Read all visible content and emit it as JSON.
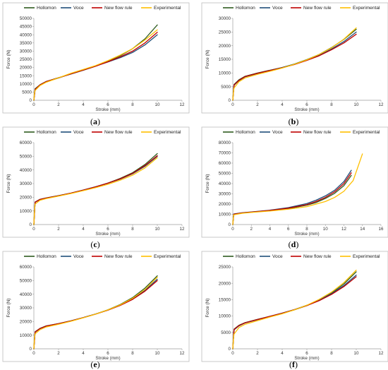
{
  "chart_data": [
    {
      "caption_letter": "a",
      "type": "line",
      "legend": [
        "Hollomon",
        "Voce",
        "New flow rule",
        "Experimental"
      ],
      "xlabel": "Stroke (mm)",
      "ylabel": "Force (N)",
      "xlim": [
        0,
        12
      ],
      "ylim": [
        0,
        50000
      ],
      "xticks": [
        0,
        2,
        4,
        6,
        8,
        10,
        12
      ],
      "yticks": [
        0,
        5000,
        10000,
        15000,
        20000,
        25000,
        30000,
        35000,
        40000,
        45000,
        50000
      ],
      "series": [
        {
          "name": "Hollomon",
          "x": [
            0,
            0.1,
            0.5,
            1,
            2,
            3,
            4,
            5,
            6,
            7,
            8,
            9,
            10
          ],
          "y": [
            0,
            7000,
            9500,
            11500,
            13800,
            16000,
            18300,
            20800,
            23800,
            27200,
            31500,
            37500,
            46000
          ]
        },
        {
          "name": "Voce",
          "x": [
            0,
            0.1,
            0.5,
            1,
            2,
            3,
            4,
            5,
            6,
            7,
            8,
            9,
            10
          ],
          "y": [
            0,
            6500,
            9300,
            11300,
            13600,
            16200,
            18500,
            20900,
            23400,
            26000,
            29200,
            33800,
            40000
          ]
        },
        {
          "name": "New flow rule",
          "x": [
            0,
            0.1,
            0.5,
            1,
            2,
            3,
            4,
            5,
            6,
            7,
            8,
            9,
            10
          ],
          "y": [
            0,
            6600,
            9400,
            11400,
            13700,
            16100,
            18400,
            20800,
            23500,
            26500,
            30000,
            35000,
            41500
          ]
        },
        {
          "name": "Experimental",
          "x": [
            0,
            0.05,
            0.1,
            0.5,
            1,
            2,
            3,
            4,
            5,
            6,
            7,
            8,
            9,
            10
          ],
          "y": [
            0,
            4500,
            6000,
            9000,
            11000,
            13700,
            16500,
            18800,
            21200,
            24200,
            27600,
            31500,
            36800,
            43000
          ]
        }
      ]
    },
    {
      "caption_letter": "b",
      "type": "line",
      "legend": [
        "Hollomon",
        "Voce",
        "New flow rule",
        "Experimental"
      ],
      "xlabel": "Stroke (mm)",
      "ylabel": "Force (N)",
      "xlim": [
        0,
        12
      ],
      "ylim": [
        0,
        30000
      ],
      "xticks": [
        0,
        2,
        4,
        6,
        8,
        10,
        12
      ],
      "yticks": [
        0,
        5000,
        10000,
        15000,
        20000,
        25000,
        30000
      ],
      "series": [
        {
          "name": "Hollomon",
          "x": [
            0,
            0.1,
            0.5,
            1,
            2,
            3,
            4,
            5,
            6,
            7,
            8,
            9,
            10
          ],
          "y": [
            0,
            5800,
            7500,
            8800,
            10000,
            11000,
            12000,
            13300,
            14900,
            16800,
            19300,
            22300,
            26000
          ]
        },
        {
          "name": "Voce",
          "x": [
            0,
            0.1,
            0.5,
            1,
            2,
            3,
            4,
            5,
            6,
            7,
            8,
            9,
            10
          ],
          "y": [
            0,
            5500,
            7200,
            8600,
            9800,
            10900,
            12000,
            13200,
            14700,
            16500,
            18800,
            21500,
            25000
          ]
        },
        {
          "name": "New flow rule",
          "x": [
            0,
            0.1,
            0.5,
            1,
            2,
            3,
            4,
            5,
            6,
            7,
            8,
            9,
            10
          ],
          "y": [
            0,
            5600,
            7300,
            8700,
            9900,
            10900,
            11900,
            13100,
            14600,
            16300,
            18500,
            21000,
            24200
          ]
        },
        {
          "name": "Experimental",
          "x": [
            0,
            0.05,
            0.1,
            0.5,
            1,
            2,
            3,
            4,
            5,
            6,
            7,
            8,
            9,
            10
          ],
          "y": [
            0,
            3000,
            4500,
            6800,
            8200,
            9500,
            10600,
            11800,
            13200,
            14800,
            16800,
            19200,
            22400,
            26500
          ]
        }
      ]
    },
    {
      "caption_letter": "c",
      "type": "line",
      "legend": [
        "Hollomon",
        "Voce",
        "New flow rule",
        "Experimental"
      ],
      "xlabel": "Stroke (mm)",
      "ylabel": "Force (N)",
      "xlim": [
        0,
        12
      ],
      "ylim": [
        0,
        60000
      ],
      "xticks": [
        0,
        2,
        4,
        6,
        8,
        10,
        12
      ],
      "yticks": [
        0,
        10000,
        20000,
        30000,
        40000,
        50000,
        60000
      ],
      "series": [
        {
          "name": "Hollomon",
          "x": [
            0,
            0.1,
            0.5,
            1,
            2,
            3,
            4,
            5,
            6,
            7,
            8,
            9,
            10
          ],
          "y": [
            0,
            16500,
            18500,
            19500,
            21200,
            23000,
            25200,
            27600,
            30400,
            33800,
            38000,
            44000,
            52000
          ]
        },
        {
          "name": "Voce",
          "x": [
            0,
            0.1,
            0.5,
            1,
            2,
            3,
            4,
            5,
            6,
            7,
            8,
            9,
            10
          ],
          "y": [
            0,
            16300,
            18300,
            19300,
            21000,
            23000,
            25300,
            27700,
            30300,
            33300,
            37200,
            42700,
            50000
          ]
        },
        {
          "name": "New flow rule",
          "x": [
            0,
            0.1,
            0.5,
            1,
            2,
            3,
            4,
            5,
            6,
            7,
            8,
            9,
            10
          ],
          "y": [
            0,
            16400,
            18400,
            19400,
            21100,
            23000,
            25200,
            27600,
            30300,
            33500,
            37500,
            43200,
            50500
          ]
        },
        {
          "name": "Experimental",
          "x": [
            0,
            0.05,
            0.1,
            0.5,
            1,
            2,
            3,
            4,
            5,
            6,
            7,
            8,
            9,
            10
          ],
          "y": [
            0,
            10000,
            15000,
            17800,
            19000,
            20800,
            22700,
            24800,
            27000,
            29500,
            32500,
            36200,
            41500,
            49000
          ]
        }
      ]
    },
    {
      "caption_letter": "d",
      "type": "line",
      "legend": [
        "Hollomon",
        "Voce",
        "New flow rule",
        "Experimental"
      ],
      "xlabel": "Stroke (mm)",
      "ylabel": "Force (N)",
      "xlim": [
        0,
        16
      ],
      "ylim": [
        0,
        80000
      ],
      "xticks": [
        0,
        2,
        4,
        6,
        8,
        10,
        12,
        14,
        16
      ],
      "yticks": [
        0,
        10000,
        20000,
        30000,
        40000,
        50000,
        60000,
        70000,
        80000
      ],
      "series": [
        {
          "name": "Hollomon",
          "x": [
            0,
            0.1,
            1,
            2,
            4,
            6,
            8,
            9,
            10,
            11,
            12,
            12.8
          ],
          "y": [
            0,
            10000,
            11300,
            12000,
            13500,
            15500,
            19000,
            21500,
            25500,
            30500,
            38000,
            48000
          ]
        },
        {
          "name": "Voce",
          "x": [
            0,
            0.1,
            1,
            2,
            4,
            6,
            8,
            9,
            10,
            11,
            12,
            12.8
          ],
          "y": [
            0,
            10300,
            11500,
            12300,
            14000,
            16500,
            20500,
            23800,
            28000,
            33500,
            42000,
            53000
          ]
        },
        {
          "name": "New flow rule",
          "x": [
            0,
            0.1,
            1,
            2,
            4,
            6,
            8,
            9,
            10,
            11,
            12,
            12.8
          ],
          "y": [
            0,
            10100,
            11400,
            12100,
            13800,
            16000,
            19500,
            22500,
            26500,
            32000,
            40000,
            50500
          ]
        },
        {
          "name": "Experimental",
          "x": [
            0,
            0.05,
            0.1,
            1,
            2,
            4,
            6,
            8,
            10,
            11,
            12,
            13,
            14
          ],
          "y": [
            0,
            6000,
            9500,
            11000,
            11800,
            13200,
            15000,
            17500,
            22500,
            26500,
            32500,
            43000,
            69000
          ]
        }
      ]
    },
    {
      "caption_letter": "e",
      "type": "line",
      "legend": [
        "Hollomon",
        "Voce",
        "New flow rule",
        "Experimental"
      ],
      "xlabel": "Stroke (mm)",
      "ylabel": "Force (N)",
      "xlim": [
        0,
        12
      ],
      "ylim": [
        0,
        60000
      ],
      "xticks": [
        0,
        2,
        4,
        6,
        8,
        10,
        12
      ],
      "yticks": [
        0,
        10000,
        20000,
        30000,
        40000,
        50000,
        60000
      ],
      "series": [
        {
          "name": "Hollomon",
          "x": [
            0,
            0.1,
            0.5,
            1,
            2,
            3,
            4,
            5,
            6,
            7,
            8,
            9,
            10
          ],
          "y": [
            0,
            12500,
            15000,
            16800,
            18500,
            20500,
            22800,
            25500,
            28600,
            32500,
            37500,
            44500,
            53500
          ]
        },
        {
          "name": "Voce",
          "x": [
            0,
            0.1,
            0.5,
            1,
            2,
            3,
            4,
            5,
            6,
            7,
            8,
            9,
            10
          ],
          "y": [
            0,
            12200,
            14800,
            16600,
            18400,
            20500,
            22900,
            25500,
            28400,
            32000,
            36500,
            42800,
            51000
          ]
        },
        {
          "name": "New flow rule",
          "x": [
            0,
            0.1,
            0.5,
            1,
            2,
            3,
            4,
            5,
            6,
            7,
            8,
            9,
            10
          ],
          "y": [
            0,
            12300,
            14900,
            16700,
            18400,
            20400,
            22800,
            25400,
            28300,
            31800,
            36200,
            42200,
            50000
          ]
        },
        {
          "name": "Experimental",
          "x": [
            0,
            0.05,
            0.1,
            0.5,
            1,
            2,
            3,
            4,
            5,
            6,
            7,
            8,
            9,
            10
          ],
          "y": [
            0,
            8000,
            11000,
            14000,
            16000,
            18000,
            20200,
            22700,
            25400,
            28500,
            32200,
            37000,
            43500,
            52500
          ]
        }
      ]
    },
    {
      "caption_letter": "f",
      "type": "line",
      "legend": [
        "Hollomon",
        "Voce",
        "New flow rule",
        "Experimental"
      ],
      "xlabel": "Stroke (mm)",
      "ylabel": "Force (N)",
      "xlim": [
        0,
        12
      ],
      "ylim": [
        0,
        25000
      ],
      "xticks": [
        0,
        2,
        4,
        6,
        8,
        10,
        12
      ],
      "yticks": [
        0,
        5000,
        10000,
        15000,
        20000,
        25000
      ],
      "series": [
        {
          "name": "Hollomon",
          "x": [
            0,
            0.1,
            0.5,
            1,
            2,
            3,
            4,
            5,
            6,
            7,
            8,
            9,
            10
          ],
          "y": [
            0,
            6000,
            7200,
            8000,
            9000,
            9900,
            10800,
            11900,
            13200,
            14900,
            17000,
            19800,
            23500
          ]
        },
        {
          "name": "Voce",
          "x": [
            0,
            0.1,
            0.5,
            1,
            2,
            3,
            4,
            5,
            6,
            7,
            8,
            9,
            10
          ],
          "y": [
            0,
            5800,
            7000,
            7900,
            8900,
            9900,
            10900,
            12000,
            13300,
            14900,
            16800,
            19300,
            22500
          ]
        },
        {
          "name": "New flow rule",
          "x": [
            0,
            0.1,
            0.5,
            1,
            2,
            3,
            4,
            5,
            6,
            7,
            8,
            9,
            10
          ],
          "y": [
            0,
            5900,
            7100,
            7950,
            8950,
            9900,
            10850,
            11950,
            13200,
            14700,
            16600,
            19000,
            22000
          ]
        },
        {
          "name": "Experimental",
          "x": [
            0,
            0.05,
            0.1,
            0.5,
            1,
            2,
            3,
            4,
            5,
            6,
            7,
            8,
            9,
            10
          ],
          "y": [
            0,
            3000,
            4500,
            6500,
            7500,
            8600,
            9700,
            10700,
            11900,
            13300,
            15100,
            17300,
            20200,
            24000
          ]
        }
      ]
    }
  ],
  "series_colors": {
    "Hollomon": "#2e5c1f",
    "Voce": "#1f4e79",
    "New flow rule": "#c00000",
    "Experimental": "#ffc000"
  }
}
